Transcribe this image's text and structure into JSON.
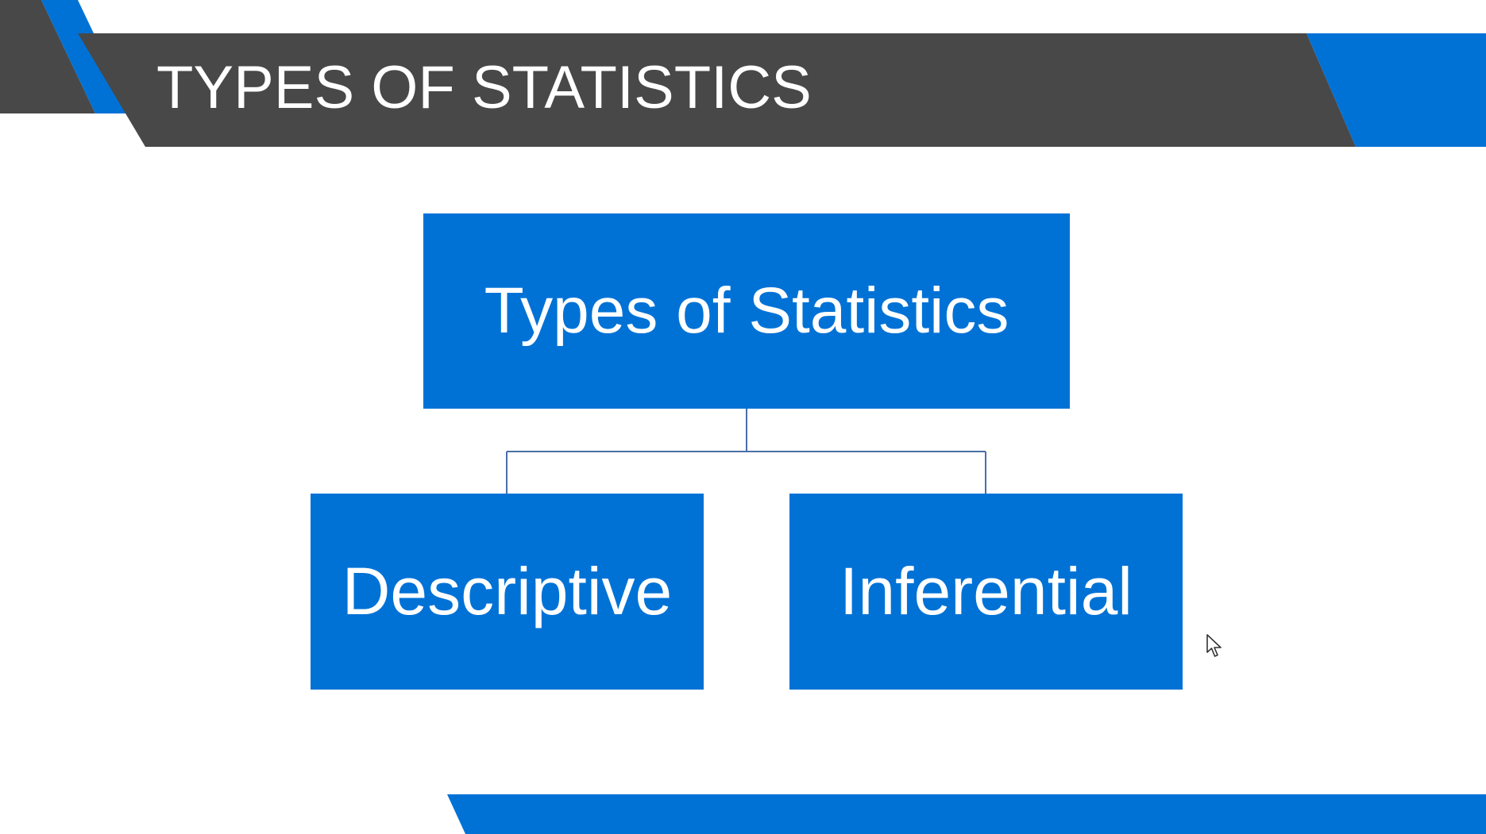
{
  "slide": {
    "title": "TYPES OF STATISTICS"
  },
  "diagram": {
    "root": {
      "label": "Types of Statistics"
    },
    "children": [
      {
        "label": "Descriptive"
      },
      {
        "label": "Inferential"
      }
    ]
  },
  "colors": {
    "header_bar": "#484848",
    "accent_blue": "#0072d6",
    "connector": "#4a6fa8",
    "box_text": "#ffffff"
  },
  "icons": {
    "cursor": "mouse-pointer-icon"
  }
}
